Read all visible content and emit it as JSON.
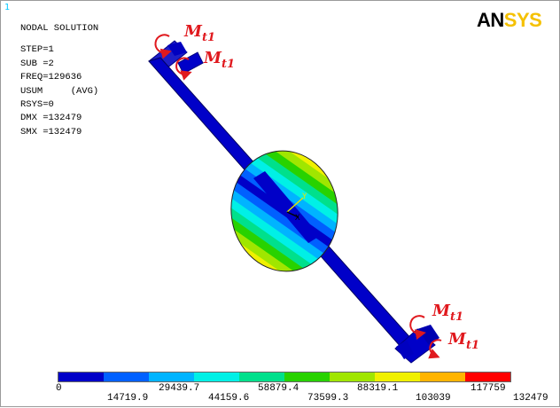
{
  "window_number": "1",
  "logo": {
    "part1": "AN",
    "part2": "SYS"
  },
  "info": {
    "title": "NODAL SOLUTION",
    "lines": [
      "STEP=1",
      "SUB =2",
      "FREQ=129636",
      "USUM     (AVG)",
      "RSYS=0",
      "DMX =132479",
      "SMX =132479"
    ]
  },
  "moment_labels": [
    {
      "main": "M",
      "sub": "t1"
    },
    {
      "main": "M",
      "sub": "t1"
    },
    {
      "main": "M",
      "sub": "t1"
    },
    {
      "main": "M",
      "sub": "t1"
    }
  ],
  "axis": {
    "y": "Y",
    "x": "X"
  },
  "legend": {
    "colors": [
      "#0000c8",
      "#0060ff",
      "#00b4ff",
      "#00f0e6",
      "#00e08c",
      "#28d200",
      "#a0e600",
      "#f0f000",
      "#ffb400",
      "#ff0000"
    ],
    "upper_labels": [
      "0",
      "29439.7",
      "58879.4",
      "88319.1",
      "117759"
    ],
    "lower_labels": [
      "14719.9",
      "44159.6",
      "73599.3",
      "103039",
      "132479"
    ]
  }
}
